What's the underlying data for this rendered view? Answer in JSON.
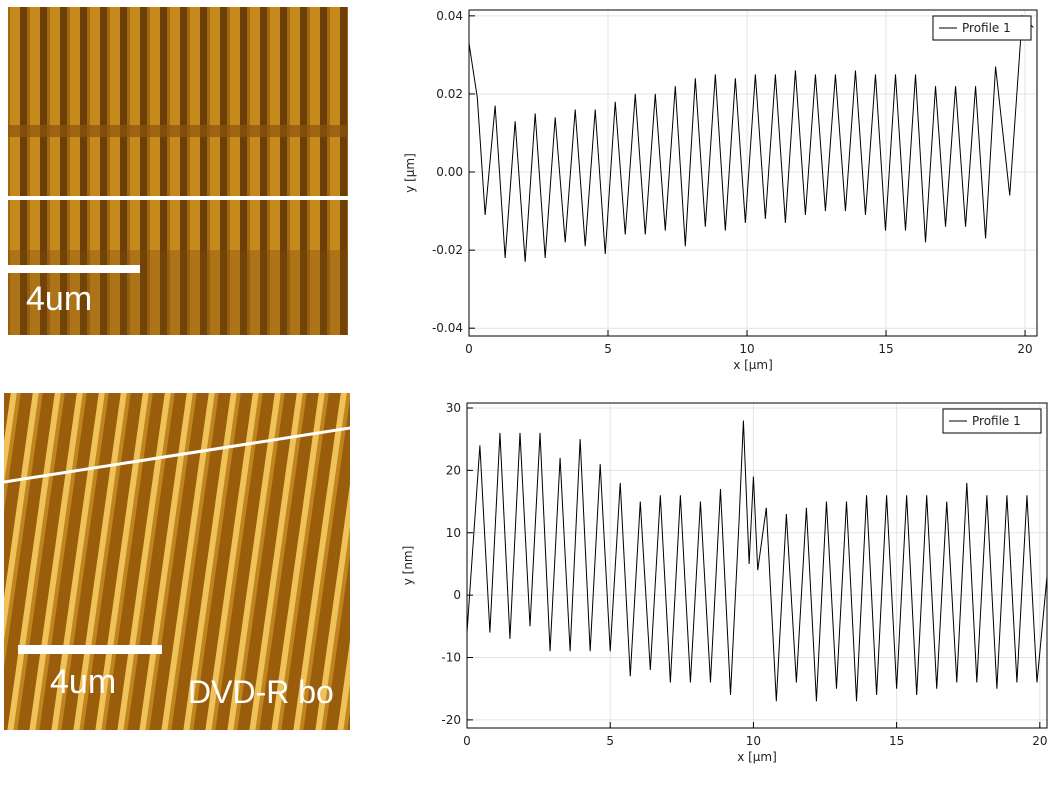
{
  "chart_data": [
    {
      "type": "line",
      "xlabel": "x [µm]",
      "ylabel": "y [µm]",
      "x": [
        0,
        0.3,
        0.58,
        0.94,
        1.3,
        1.66,
        2.02,
        2.38,
        2.74,
        3.1,
        3.46,
        3.82,
        4.18,
        4.54,
        4.9,
        5.26,
        5.62,
        5.98,
        6.34,
        6.7,
        7.06,
        7.42,
        7.78,
        8.14,
        8.5,
        8.86,
        9.22,
        9.58,
        9.94,
        10.3,
        10.66,
        11.02,
        11.38,
        11.74,
        12.1,
        12.46,
        12.82,
        13.18,
        13.54,
        13.9,
        14.26,
        14.62,
        14.98,
        15.34,
        15.7,
        16.06,
        16.42,
        16.78,
        17.14,
        17.5,
        17.86,
        18.22,
        18.58,
        18.94,
        19.45,
        19.9,
        20.3
      ],
      "series": [
        {
          "name": "Profile 1",
          "color": "#000000",
          "values": [
            0.033,
            0.019,
            -0.011,
            0.017,
            -0.022,
            0.013,
            -0.023,
            0.015,
            -0.022,
            0.014,
            -0.018,
            0.016,
            -0.019,
            0.016,
            -0.021,
            0.018,
            -0.016,
            0.02,
            -0.016,
            0.02,
            -0.015,
            0.022,
            -0.019,
            0.024,
            -0.014,
            0.025,
            -0.015,
            0.024,
            -0.013,
            0.025,
            -0.012,
            0.025,
            -0.013,
            0.026,
            -0.011,
            0.025,
            -0.01,
            0.025,
            -0.01,
            0.026,
            -0.011,
            0.025,
            -0.015,
            0.025,
            -0.015,
            0.025,
            -0.018,
            0.022,
            -0.014,
            0.022,
            -0.014,
            0.022,
            -0.017,
            0.027,
            -0.006,
            0.04,
            0.037
          ]
        }
      ],
      "xlim": [
        0,
        20.43
      ],
      "xticks": [
        0,
        5,
        10,
        15,
        20
      ],
      "ylim": [
        -0.042,
        0.0415
      ],
      "yticks": [
        -0.04,
        -0.02,
        {
          "value": 0,
          "label": "0.00"
        },
        0.02,
        0.04
      ],
      "grid": true,
      "legend": "top-right"
    },
    {
      "type": "line",
      "xlabel": "x [µm]",
      "ylabel": "y [nm]",
      "x": [
        0,
        0.45,
        0.8,
        1.15,
        1.5,
        1.85,
        2.2,
        2.55,
        2.9,
        3.25,
        3.6,
        3.95,
        4.3,
        4.65,
        5.0,
        5.35,
        5.7,
        6.05,
        6.4,
        6.75,
        7.1,
        7.45,
        7.8,
        8.15,
        8.5,
        8.85,
        9.2,
        9.5,
        9.65,
        9.85,
        10.0,
        10.15,
        10.45,
        10.8,
        11.15,
        11.5,
        11.85,
        12.2,
        12.55,
        12.9,
        13.25,
        13.6,
        13.95,
        14.3,
        14.65,
        15.0,
        15.35,
        15.7,
        16.05,
        16.4,
        16.75,
        17.1,
        17.45,
        17.8,
        18.15,
        18.5,
        18.85,
        19.2,
        19.55,
        19.9,
        20.25
      ],
      "series": [
        {
          "name": "Profile 1",
          "color": "#000000",
          "values": [
            -6,
            24,
            -6,
            26,
            -7,
            26,
            -5,
            26,
            -9,
            22,
            -9,
            25,
            -9,
            21,
            -9,
            18,
            -13,
            15,
            -12,
            16,
            -14,
            16,
            -14,
            15,
            -14,
            17,
            -16,
            12,
            28,
            5,
            19,
            4,
            14,
            -17,
            13,
            -14,
            14,
            -17,
            15,
            -15,
            15,
            -17,
            16,
            -16,
            16,
            -15,
            16,
            -16,
            16,
            -15,
            15,
            -14,
            18,
            -14,
            16,
            -15,
            16,
            -14,
            16,
            -14,
            3
          ]
        }
      ],
      "xlim": [
        0,
        20.25
      ],
      "xticks": [
        0,
        5,
        10,
        15,
        20
      ],
      "ylim": [
        -21.3,
        30.8
      ],
      "yticks": [
        -20,
        -10,
        0,
        10,
        20,
        30
      ],
      "grid": true,
      "legend": "top-right"
    }
  ],
  "images": [
    {
      "scale_label": "4um"
    },
    {
      "scale_label": "4um",
      "caption": "DVD-R bo"
    }
  ]
}
